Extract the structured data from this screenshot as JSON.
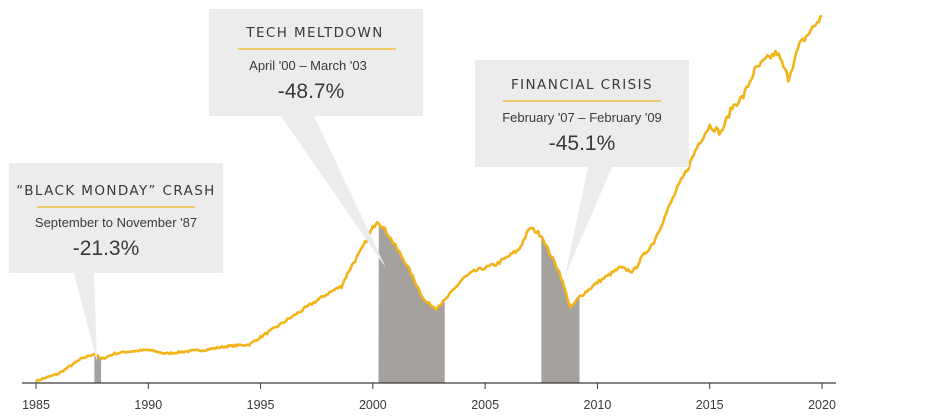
{
  "chart_data": {
    "type": "area",
    "x_ticks": [
      "1985",
      "1990",
      "1995",
      "2000",
      "2005",
      "2010",
      "2015",
      "2020"
    ],
    "xlim": [
      1985,
      2020
    ],
    "ylim": [
      0,
      1
    ],
    "y_scale": "log",
    "line_color": "#f2b418",
    "shade_color": "#a5a19d",
    "box_color": "#ececec",
    "series": [
      {
        "x": [
          1985.0,
          1986.0,
          1987.0,
          1987.6,
          1987.9,
          1988.5,
          1989.0,
          1990.0,
          1990.8,
          1991.5,
          1992.5,
          1993.5,
          1994.5,
          1995.0,
          1996.0,
          1997.0,
          1998.0,
          1998.6,
          1999.0,
          1999.5,
          2000.0,
          2000.2,
          2000.6,
          2001.0,
          2001.5,
          2001.9,
          2002.3,
          2002.8,
          2003.2,
          2003.6,
          2004.0,
          2004.5,
          2005.0,
          2005.5,
          2006.0,
          2006.5,
          2007.0,
          2007.5,
          2007.8,
          2008.3,
          2008.8,
          2009.2,
          2009.6,
          2010.0,
          2010.5,
          2011.0,
          2011.6,
          2012.0,
          2012.5,
          2013.0,
          2013.5,
          2014.0,
          2014.5,
          2015.0,
          2015.5,
          2016.0,
          2016.5,
          2017.0,
          2017.5,
          2018.0,
          2018.5,
          2019.0,
          2019.5,
          2020.0
        ],
        "y": [
          0.0,
          0.02,
          0.06,
          0.075,
          0.06,
          0.075,
          0.08,
          0.085,
          0.075,
          0.08,
          0.085,
          0.095,
          0.1,
          0.12,
          0.16,
          0.2,
          0.24,
          0.26,
          0.31,
          0.36,
          0.42,
          0.44,
          0.41,
          0.37,
          0.32,
          0.27,
          0.22,
          0.2,
          0.22,
          0.25,
          0.28,
          0.3,
          0.31,
          0.32,
          0.34,
          0.36,
          0.42,
          0.4,
          0.36,
          0.3,
          0.2,
          0.23,
          0.25,
          0.27,
          0.29,
          0.31,
          0.3,
          0.34,
          0.38,
          0.45,
          0.52,
          0.58,
          0.65,
          0.7,
          0.68,
          0.75,
          0.78,
          0.85,
          0.88,
          0.9,
          0.83,
          0.92,
          0.96,
          1.0
        ]
      }
    ],
    "shaded_periods": [
      {
        "start": 1987.6,
        "end": 1987.9
      },
      {
        "start": 2000.25,
        "end": 2003.2
      },
      {
        "start": 2007.5,
        "end": 2009.2
      }
    ],
    "annotations": [
      {
        "title": "“BLACK MONDAY” CRASH",
        "period": "September to November '87",
        "value": "-21.3%"
      },
      {
        "title": "TECH MELTDOWN",
        "period": "April '00 – March '03",
        "value": "-48.7%"
      },
      {
        "title": "FINANCIAL CRISIS",
        "period": "February '07 – February '09",
        "value": "-45.1%"
      }
    ]
  }
}
